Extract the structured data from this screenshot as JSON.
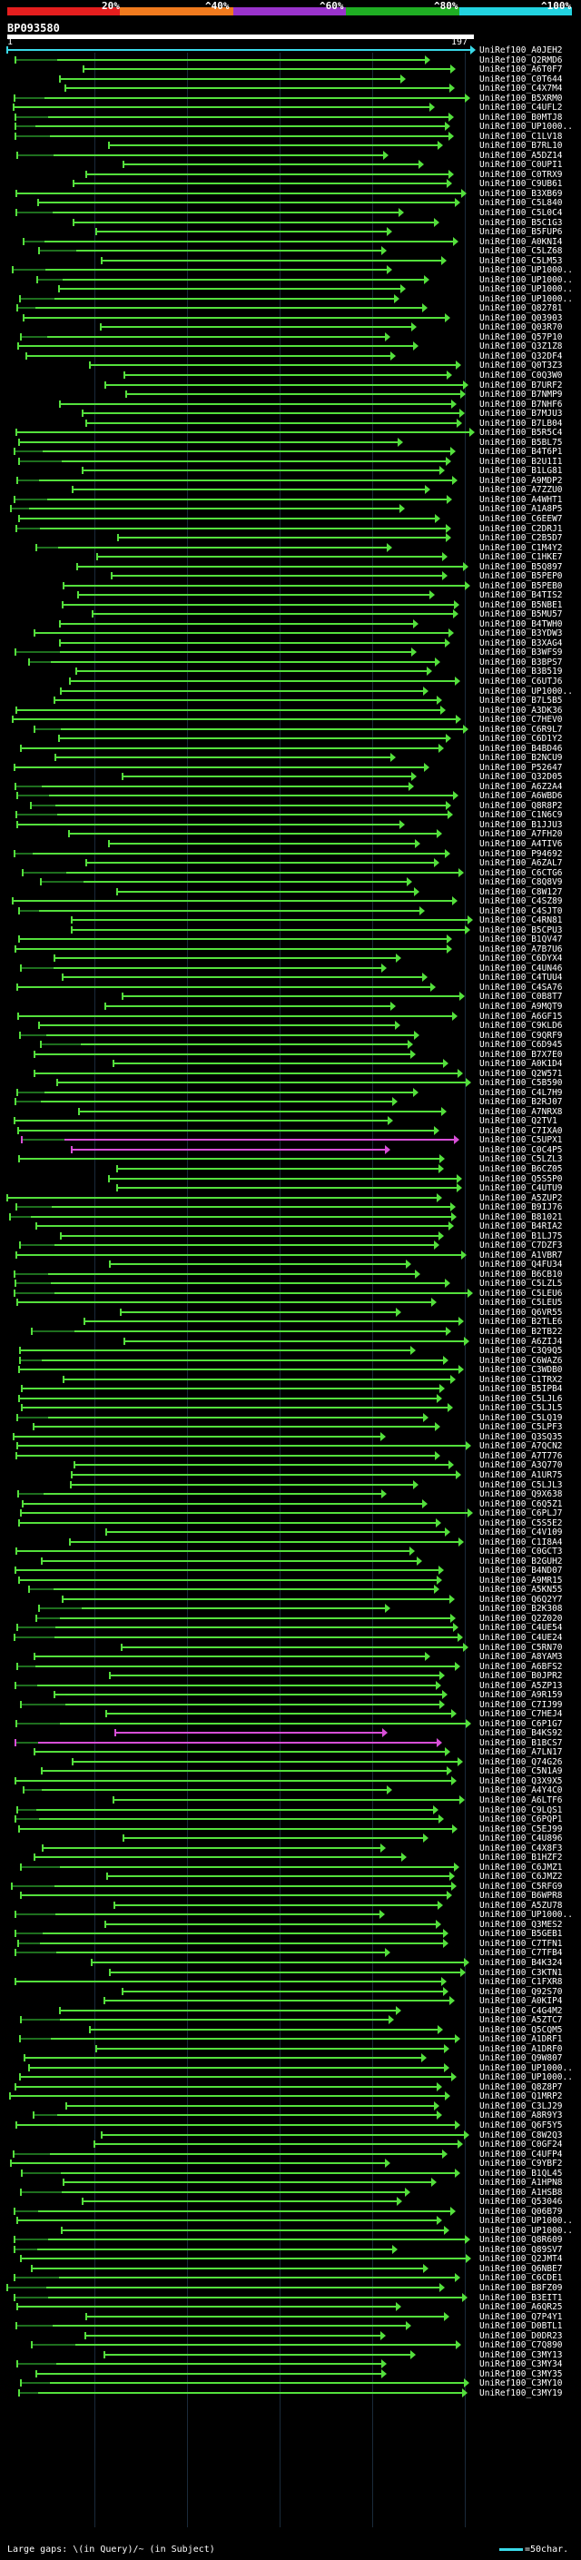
{
  "scale": {
    "labels": [
      "20%",
      "^40%",
      "^60%",
      "^80%",
      "^100%"
    ],
    "colors": [
      "#e51e1e",
      "#f07a1e",
      "#9a33cc",
      "#1fae23",
      "#22d3e0"
    ]
  },
  "query": {
    "name": "BP093580",
    "start": "1",
    "end": "197"
  },
  "colors": {
    "hit_green": "#54e03c",
    "hit_magenta": "#d84fd8",
    "hit_cyan": "#3ad9e8",
    "tail_dark_green": "#1e6e1e"
  },
  "hits": [
    "UniRef100_A0JEH2",
    "UniRef100_Q2RMD6",
    "UniRef100_A6T0F7",
    "UniRef100_C0T644",
    "UniRef100_C4X7M4",
    "UniRef100_B5XRM0",
    "UniRef100_C4UFL2",
    "UniRef100_B0MTJ8",
    "UniRef100_UP1000..",
    "UniRef100_C1LV18",
    "UniRef100_B7RL10",
    "UniRef100_A5DZ14",
    "UniRef100_C0UPI1",
    "UniRef100_C0TRX9",
    "UniRef100_C9UB61",
    "UniRef100_B3XB69",
    "UniRef100_C5L840",
    "UniRef100_C5L0C4",
    "UniRef100_B5C1G3",
    "UniRef100_B5FUP6",
    "UniRef100_A0KNI4",
    "UniRef100_C5LZ68",
    "UniRef100_C5LM53",
    "UniRef100_UP1000..",
    "UniRef100_UP1000..",
    "UniRef100_UP1000..",
    "UniRef100_UP1000..",
    "UniRef100_Q82781",
    "UniRef100_Q03903",
    "UniRef100_Q03R70",
    "UniRef100_Q57P10",
    "UniRef100_Q3Z1Z8",
    "UniRef100_Q32DF4",
    "UniRef100_Q0T3Z3",
    "UniRef100_C0Q3W0",
    "UniRef100_B7URF2",
    "UniRef100_B7NMP9",
    "UniRef100_B7NHF6",
    "UniRef100_B7MJU3",
    "UniRef100_B7LB04",
    "UniRef100_B5R5C4",
    "UniRef100_B5BL75",
    "UniRef100_B4T6P1",
    "UniRef100_B2U1I1",
    "UniRef100_B1LG81",
    "UniRef100_A9MDP2",
    "UniRef100_A7ZZU0",
    "UniRef100_A4WHT1",
    "UniRef100_A1A8P5",
    "UniRef100_C6EEW7",
    "UniRef100_C2DRJ1",
    "UniRef100_C2B5D7",
    "UniRef100_C1M4Y2",
    "UniRef100_C1HKE7",
    "UniRef100_B5Q897",
    "UniRef100_B5PEP0",
    "UniRef100_B5PEB0",
    "UniRef100_B4TIS2",
    "UniRef100_B5NBE1",
    "UniRef100_B5MU57",
    "UniRef100_B4TWH0",
    "UniRef100_B3YDW3",
    "UniRef100_B3XAG4",
    "UniRef100_B3WFS9",
    "UniRef100_B3BPS7",
    "UniRef100_B3B519",
    "UniRef100_C6UTJ6",
    "UniRef100_UP1000..",
    "UniRef100_B7L5B5",
    "UniRef100_A3DK36",
    "UniRef100_C7HEV0",
    "UniRef100_C6R9L7",
    "UniRef100_C6D1Y2",
    "UniRef100_B4BD46",
    "UniRef100_B2NCU9",
    "UniRef100_P52647",
    "UniRef100_Q32D05",
    "UniRef100_A6Z2A4",
    "UniRef100_A6WBD6",
    "UniRef100_Q8R8P2",
    "UniRef100_C1N6C9",
    "UniRef100_B1JJU3",
    "UniRef100_A7FH20",
    "UniRef100_A4TIV6",
    "UniRef100_P94692",
    "UniRef100_A6ZAL7",
    "UniRef100_C6CTG6",
    "UniRef100_C8Q8V9",
    "UniRef100_C8W127",
    "UniRef100_C4SZ89",
    "UniRef100_C4SJT0",
    "UniRef100_C4RN81",
    "UniRef100_B5CPU3",
    "UniRef100_B1QV47",
    "UniRef100_A7B7U6",
    "UniRef100_C6DYX4",
    "UniRef100_C4UN46",
    "UniRef100_C4TUU4",
    "UniRef100_C4SA76",
    "UniRef100_C0B8T7",
    "UniRef100_A9MQT9",
    "UniRef100_A6GF15",
    "UniRef100_C9KLD6",
    "UniRef100_C9QRF9",
    "UniRef100_C6D945",
    "UniRef100_B7X7E0",
    "UniRef100_A0K1D4",
    "UniRef100_Q2W571",
    "UniRef100_C5B590",
    "UniRef100_C4L7H9",
    "UniRef100_B2RJ07",
    "UniRef100_A7NRX8",
    "UniRef100_Q2TV1",
    "UniRef100_C7IXA0",
    "UniRef100_C5UPX1",
    "UniRef100_C0C4P5",
    "UniRef100_C5LZL3",
    "UniRef100_B6CZ05",
    "UniRef100_Q5S5P0",
    "UniRef100_C4UTU9",
    "UniRef100_A5ZUP2",
    "UniRef100_B9IJ76",
    "UniRef100_B81021",
    "UniRef100_B4RIA2",
    "UniRef100_B1LJ75",
    "UniRef100_C7DZF3",
    "UniRef100_A1VBR7",
    "UniRef100_Q4FU34",
    "UniRef100_B6CB10",
    "UniRef100_C5LZL5",
    "UniRef100_C5LEU6",
    "UniRef100_C5LEU5",
    "UniRef100_Q6VR55",
    "UniRef100_B2TLE6",
    "UniRef100_B2TB22",
    "UniRef100_A6ZIJ4",
    "UniRef100_C3Q9Q5",
    "UniRef100_C6WAZ6",
    "UniRef100_C3WDB0",
    "UniRef100_C1TRX2",
    "UniRef100_B5IPB4",
    "UniRef100_C5LJL6",
    "UniRef100_C5LJL5",
    "UniRef100_C5LQ19",
    "UniRef100_C5LPF3",
    "UniRef100_Q3SQ35",
    "UniRef100_A7QCN2",
    "UniRef100_A7T776",
    "UniRef100_A3Q770",
    "UniRef100_A1UR75",
    "UniRef100_C5LJL3",
    "UniRef100_Q9X638",
    "UniRef100_C6Q5Z1",
    "UniRef100_C6PLJ7",
    "UniRef100_C5S5E2",
    "UniRef100_C4V109",
    "UniRef100_C1I8A4",
    "UniRef100_C0GCT3",
    "UniRef100_B2GUH2",
    "UniRef100_B4ND07",
    "UniRef100_A9MR15",
    "UniRef100_A5KN55",
    "UniRef100_Q6Q2Y7",
    "UniRef100_B2K308",
    "UniRef100_Q2Z020",
    "UniRef100_C4UE54",
    "UniRef100_C4UE24",
    "UniRef100_C5RN70",
    "UniRef100_A8YAM3",
    "UniRef100_A6BFS2",
    "UniRef100_B0JPR2",
    "UniRef100_A5ZP13",
    "UniRef100_A9R159",
    "UniRef100_C7IJ99",
    "UniRef100_C7HEJ4",
    "UniRef100_C6P1G7",
    "UniRef100_B4KS92",
    "UniRef100_B1BCS7",
    "UniRef100_A7LN17",
    "UniRef100_Q74G26",
    "UniRef100_C5N1A9",
    "UniRef100_Q3X9X5",
    "UniRef100_A4Y4C0",
    "UniRef100_A6LTF6",
    "UniRef100_C9LQS1",
    "UniRef100_C6PQP1",
    "UniRef100_C5EJ99",
    "UniRef100_C4U896",
    "UniRef100_C4X8F3",
    "UniRef100_B1HZF2",
    "UniRef100_C6JMZ1",
    "UniRef100_C6JMZ2",
    "UniRef100_C5RFG9",
    "UniRef100_B6WPR8",
    "UniRef100_A5ZU78",
    "UniRef100_UP1000..",
    "UniRef100_Q3MES2",
    "UniRef100_B5GEB1",
    "UniRef100_C7TFN1",
    "UniRef100_C7TFB4",
    "UniRef100_B4K324",
    "UniRef100_C3KTN1",
    "UniRef100_C1FXR8",
    "UniRef100_Q92S70",
    "UniRef100_A0KIP4",
    "UniRef100_C4G4M2",
    "UniRef100_A5ZTC7",
    "UniRef100_Q5CQM5",
    "UniRef100_A1DRF1",
    "UniRef100_A1DRF0",
    "UniRef100_Q9W807",
    "UniRef100_UP1000..",
    "UniRef100_UP1000..",
    "UniRef100_Q8Z8P7",
    "UniRef100_Q1MRP2",
    "UniRef100_C3LJ29",
    "UniRef100_A8R9Y3",
    "UniRef100_Q6F5Y5",
    "UniRef100_C8W2Q3",
    "UniRef100_C0GF24",
    "UniRef100_C4UFP4",
    "UniRef100_C9YBF2",
    "UniRef100_B1QL45",
    "UniRef100_A1HPN8",
    "UniRef100_A1HSB8",
    "UniRef100_Q53046",
    "UniRef100_Q06B79",
    "UniRef100_UP1000..",
    "UniRef100_UP1000..",
    "UniRef100_Q8R609",
    "UniRef100_Q89SV7",
    "UniRef100_Q2JMT4",
    "UniRef100_Q6NBE7",
    "UniRef100_C6CDE1",
    "UniRef100_B8FZ09",
    "UniRef100_B3EIT1",
    "UniRef100_A6QR25",
    "UniRef100_Q7P4Y1",
    "UniRef100_D0BTL1",
    "UniRef100_D0DR23",
    "UniRef100_C7Q890",
    "UniRef100_C3MY13",
    "UniRef100_C3MY34",
    "UniRef100_C3MY35",
    "UniRef100_C3MY10",
    "UniRef100_C3MY19"
  ],
  "legend": {
    "text": "Large gaps: \\(in Query)/~ (in Subject)",
    "right": "=50char."
  }
}
